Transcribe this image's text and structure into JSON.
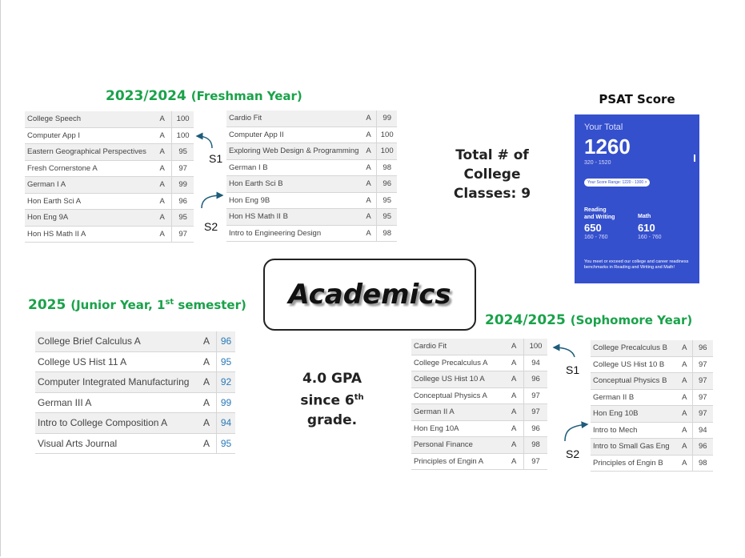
{
  "title": "Academics",
  "freshman": {
    "heading_years": "2023/2024",
    "heading_label": "(Freshman Year)",
    "s1": [
      {
        "course": "College Speech",
        "grade": "A",
        "score": "100"
      },
      {
        "course": "Computer App I",
        "grade": "A",
        "score": "100"
      },
      {
        "course": "Eastern Geographical Perspectives",
        "grade": "A",
        "score": "95"
      },
      {
        "course": "Fresh Cornerstone A",
        "grade": "A",
        "score": "97"
      },
      {
        "course": "German I A",
        "grade": "A",
        "score": "99"
      },
      {
        "course": "Hon Earth Sci A",
        "grade": "A",
        "score": "96"
      },
      {
        "course": "Hon Eng 9A",
        "grade": "A",
        "score": "95"
      },
      {
        "course": "Hon HS Math II A",
        "grade": "A",
        "score": "97"
      }
    ],
    "s2": [
      {
        "course": "Cardio Fit",
        "grade": "A",
        "score": "99"
      },
      {
        "course": "Computer App II",
        "grade": "A",
        "score": "100"
      },
      {
        "course": "Exploring Web Design & Programming",
        "grade": "A",
        "score": "100"
      },
      {
        "course": "German I B",
        "grade": "A",
        "score": "98"
      },
      {
        "course": "Hon Earth Sci B",
        "grade": "A",
        "score": "96"
      },
      {
        "course": "Hon Eng 9B",
        "grade": "A",
        "score": "95"
      },
      {
        "course": "Hon HS Math II B",
        "grade": "A",
        "score": "95"
      },
      {
        "course": "Intro to Engineering Design",
        "grade": "A",
        "score": "98"
      }
    ]
  },
  "sophomore": {
    "heading_years": "2024/2025",
    "heading_label": "(Sophomore Year)",
    "s1": [
      {
        "course": "Cardio Fit",
        "grade": "A",
        "score": "100"
      },
      {
        "course": "College Precalculus A",
        "grade": "A",
        "score": "94"
      },
      {
        "course": "College US Hist 10 A",
        "grade": "A",
        "score": "96"
      },
      {
        "course": "Conceptual Physics A",
        "grade": "A",
        "score": "97"
      },
      {
        "course": "German II A",
        "grade": "A",
        "score": "97"
      },
      {
        "course": "Hon Eng 10A",
        "grade": "A",
        "score": "96"
      },
      {
        "course": "Personal Finance",
        "grade": "A",
        "score": "98"
      },
      {
        "course": "Principles of Engin A",
        "grade": "A",
        "score": "97"
      }
    ],
    "s2": [
      {
        "course": "College Precalculus B",
        "grade": "A",
        "score": "96"
      },
      {
        "course": "College US Hist 10 B",
        "grade": "A",
        "score": "97"
      },
      {
        "course": "Conceptual Physics B",
        "grade": "A",
        "score": "97"
      },
      {
        "course": "German II B",
        "grade": "A",
        "score": "97"
      },
      {
        "course": "Hon Eng 10B",
        "grade": "A",
        "score": "97"
      },
      {
        "course": "Intro to Mech",
        "grade": "A",
        "score": "94"
      },
      {
        "course": "Intro to Small Gas Eng",
        "grade": "A",
        "score": "96"
      },
      {
        "course": "Principles of Engin B",
        "grade": "A",
        "score": "98"
      }
    ]
  },
  "junior": {
    "heading_years": "2025",
    "heading_label_pre": "(Junior Year, 1",
    "heading_sup": "st",
    "heading_label_post": " semester)",
    "courses": [
      {
        "course": "College Brief Calculus A",
        "grade": "A",
        "score": "96"
      },
      {
        "course": "College US Hist 11 A",
        "grade": "A",
        "score": "95"
      },
      {
        "course": "Computer Integrated Manufacturing",
        "grade": "A",
        "score": "92"
      },
      {
        "course": "German III A",
        "grade": "A",
        "score": "99"
      },
      {
        "course": "Intro to College Composition A",
        "grade": "A",
        "score": "94"
      },
      {
        "course": "Visual Arts Journal",
        "grade": "A",
        "score": "95"
      }
    ]
  },
  "labels": {
    "s1": "S1",
    "s2": "S2"
  },
  "college_classes": {
    "line1": "Total # of",
    "line2": "College",
    "line3": "Classes: 9"
  },
  "gpa": {
    "line1": "4.0 GPA",
    "line2_pre": "since 6",
    "line2_sup": "th",
    "line3": "grade."
  },
  "psat": {
    "title": "PSAT Score",
    "your_total_label": "Your Total",
    "total": "1260",
    "total_range": "320 - 1520",
    "score_range_button": "Your Score Range: 1220 - 1300 >",
    "rw_label_line1": "Reading",
    "rw_label_line2": "and Writing",
    "rw_score": "650",
    "rw_range": "160 - 760",
    "math_label": "Math",
    "math_score": "610",
    "math_range": "160 - 760",
    "benchmark_text": "You meet or exceed our college and career readiness benchmarks in Reading and Writing and Math!"
  },
  "colors": {
    "heading_green": "#1aa24a",
    "psat_blue": "#3550cc",
    "score_blue": "#2a7ab8"
  }
}
